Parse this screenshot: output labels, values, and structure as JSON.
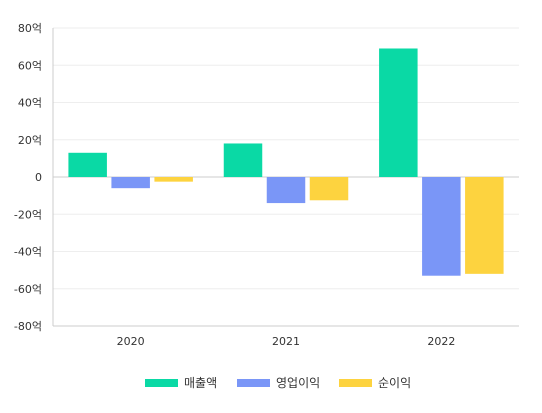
{
  "chart_data": {
    "type": "bar",
    "categories": [
      "2020",
      "2021",
      "2022"
    ],
    "series": [
      {
        "name": "매출액",
        "values": [
          13,
          18,
          69
        ],
        "color": "#0ad9a5"
      },
      {
        "name": "영업이익",
        "values": [
          -6,
          -14,
          -53
        ],
        "color": "#7a96f7"
      },
      {
        "name": "순이익",
        "values": [
          -2.5,
          -12.5,
          -52
        ],
        "color": "#fdd33f"
      }
    ],
    "ylim": [
      -80,
      80
    ],
    "yticks": [
      80,
      60,
      40,
      20,
      0,
      -20,
      -40,
      -60,
      -80
    ],
    "ytick_labels": [
      "80억",
      "60억",
      "40억",
      "20억",
      "0",
      "-20억",
      "-40억",
      "-60억",
      "-80억"
    ],
    "grid": true,
    "legend_position": "bottom-center"
  }
}
